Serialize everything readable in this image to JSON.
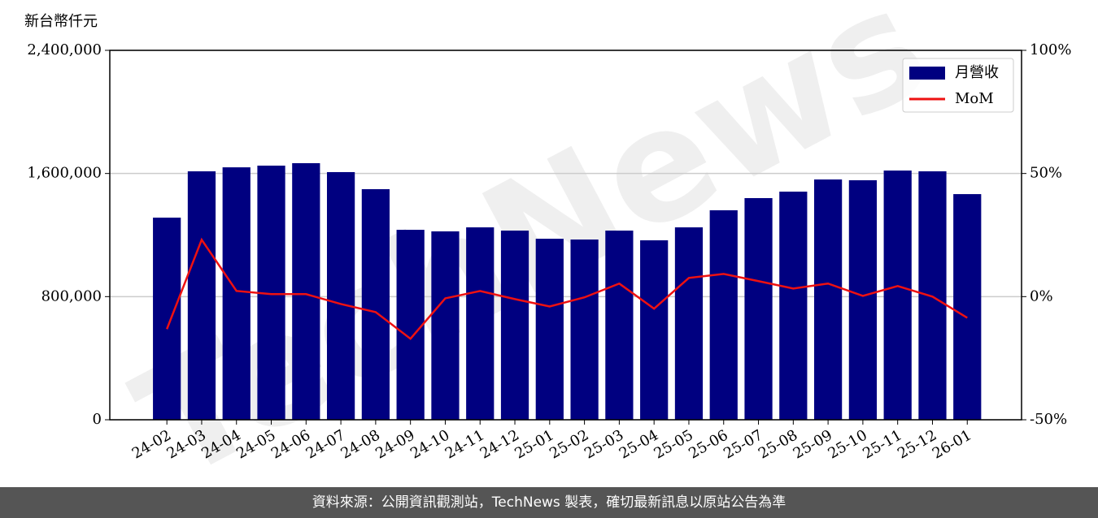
{
  "chart_data": {
    "type": "bar_line",
    "y_label": "新台幣仟元",
    "watermark": "TechNews",
    "categories": [
      "24-02",
      "24-03",
      "24-04",
      "24-05",
      "24-06",
      "24-07",
      "24-08",
      "24-09",
      "24-10",
      "24-11",
      "24-12",
      "25-01",
      "25-02",
      "25-03",
      "25-04",
      "25-05",
      "25-06",
      "25-07",
      "25-08",
      "25-09",
      "25-10",
      "25-11",
      "25-12",
      "26-01"
    ],
    "series": [
      {
        "name": "月營收",
        "type": "bar",
        "color": "#000080",
        "values": [
          1313000,
          1614000,
          1640000,
          1651000,
          1667000,
          1609000,
          1498000,
          1234000,
          1224000,
          1250000,
          1229000,
          1176000,
          1171000,
          1229000,
          1166000,
          1250000,
          1361000,
          1440000,
          1482000,
          1561000,
          1556000,
          1619000,
          1614000,
          1466000
        ]
      },
      {
        "name": "MoM",
        "type": "line",
        "axis": "y2",
        "color": "#ee1111",
        "values": [
          -13.2,
          23.1,
          2.3,
          1.0,
          1.0,
          -3.0,
          -6.3,
          -17.1,
          -0.7,
          2.3,
          -1.0,
          -4.0,
          -0.3,
          5.3,
          -4.9,
          7.6,
          9.2,
          6.3,
          3.3,
          5.3,
          0.3,
          4.3,
          0.0,
          -8.6
        ]
      }
    ],
    "ylim": [
      0,
      2400000
    ],
    "yticks": [
      0,
      {
        "value": 800000,
        "label": "800,000"
      },
      {
        "value": 1600000,
        "label": "1,600,000"
      },
      {
        "value": 2400000,
        "label": "2,400,000"
      }
    ],
    "y2lim": [
      -50,
      100
    ],
    "y2ticks": [
      {
        "value": -50,
        "label": "-50%"
      },
      {
        "value": 0,
        "label": "0%"
      },
      {
        "value": 50,
        "label": "50%"
      },
      {
        "value": 100,
        "label": "100%"
      }
    ],
    "grid": true,
    "legend": "upper right"
  },
  "footer": "資料來源：公開資訊觀測站，TechNews 製表，確切最新訊息以原站公告為準"
}
